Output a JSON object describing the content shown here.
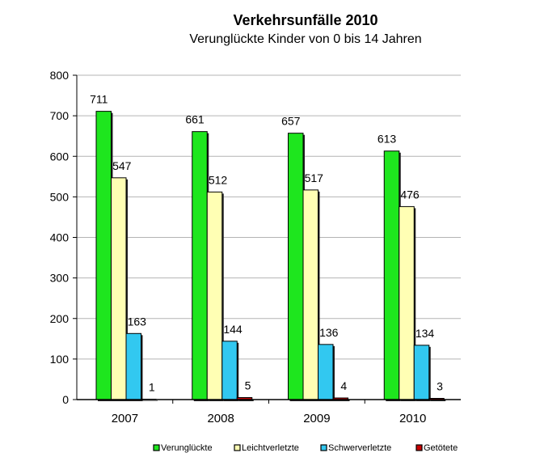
{
  "chart_data": {
    "type": "bar",
    "title": "Verkehrsunfälle 2010",
    "subtitle": "Verunglückte Kinder von 0 bis 14 Jahren",
    "xlabel": "",
    "ylabel": "",
    "categories": [
      "2007",
      "2008",
      "2009",
      "2010"
    ],
    "ylim": [
      0,
      800
    ],
    "yticks": [
      0,
      100,
      200,
      300,
      400,
      500,
      600,
      700,
      800
    ],
    "grid": true,
    "legend_position": "bottom",
    "series": [
      {
        "name": "Verunglückte",
        "values": [
          711,
          661,
          657,
          613
        ],
        "color": "#1ee61e"
      },
      {
        "name": "Leichtverletzte",
        "values": [
          547,
          512,
          517,
          476
        ],
        "color": "#ffffb4"
      },
      {
        "name": "Schwerverletzte",
        "values": [
          163,
          144,
          136,
          134
        ],
        "color": "#32c8f0"
      },
      {
        "name": "Getötete",
        "values": [
          1,
          5,
          4,
          3
        ],
        "color": "#c80000"
      }
    ]
  }
}
